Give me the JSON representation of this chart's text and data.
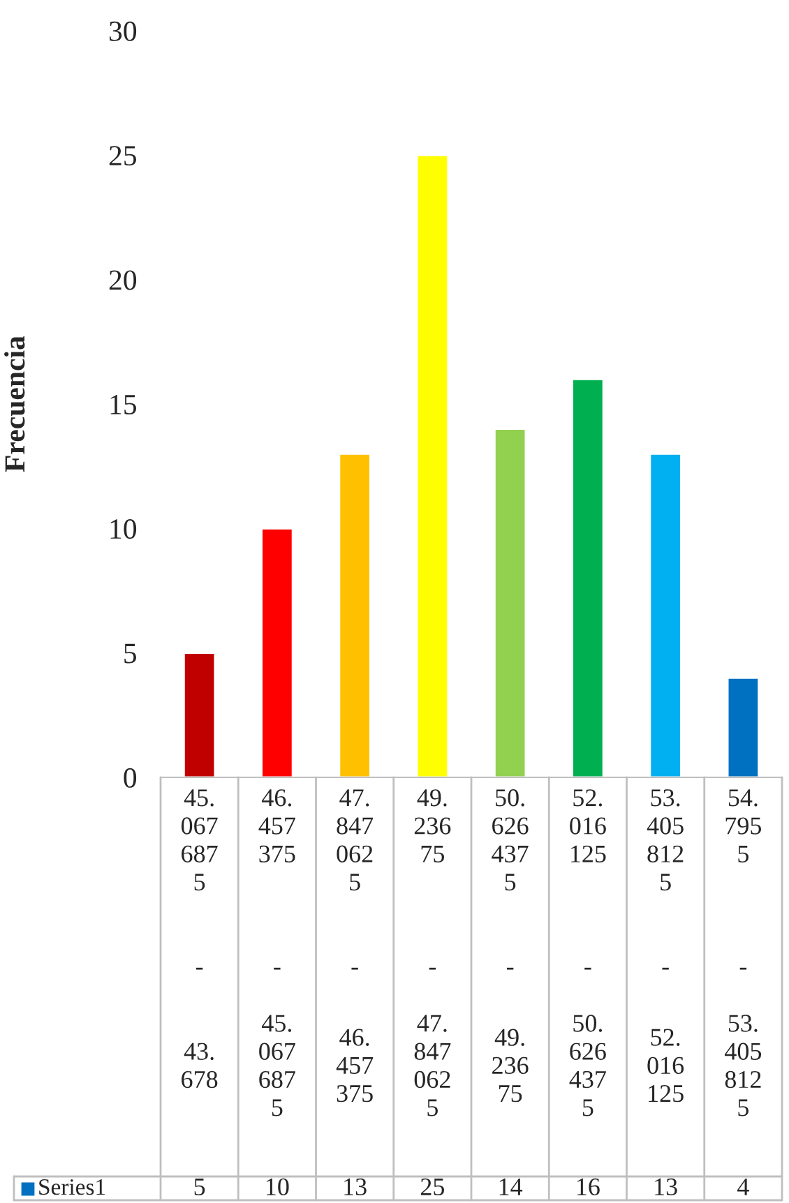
{
  "chart_data": {
    "type": "bar",
    "ylabel": "Frecuencia",
    "categories": [
      "45.0676875 - 43.678",
      "46.457375 - 45.0676875",
      "47.8470625 - 46.457375",
      "49.23675 - 47.8470625",
      "50.6264375 - 49.23675",
      "52.016125 - 50.6264375",
      "53.4058125 - 52.016125",
      "54.7955 - 53.4058125"
    ],
    "series": [
      {
        "name": "Series1",
        "values": [
          5,
          10,
          13,
          25,
          14,
          16,
          13,
          4
        ],
        "colors": [
          "#c00000",
          "#ff0000",
          "#ffc000",
          "#ffff00",
          "#92d050",
          "#00b050",
          "#00b0f0",
          "#0070c0"
        ]
      }
    ],
    "ylim": [
      0,
      30
    ],
    "yticks": [
      0,
      5,
      10,
      15,
      20,
      25,
      30
    ],
    "grid": false,
    "data_labels": true,
    "legend": "bottom"
  }
}
